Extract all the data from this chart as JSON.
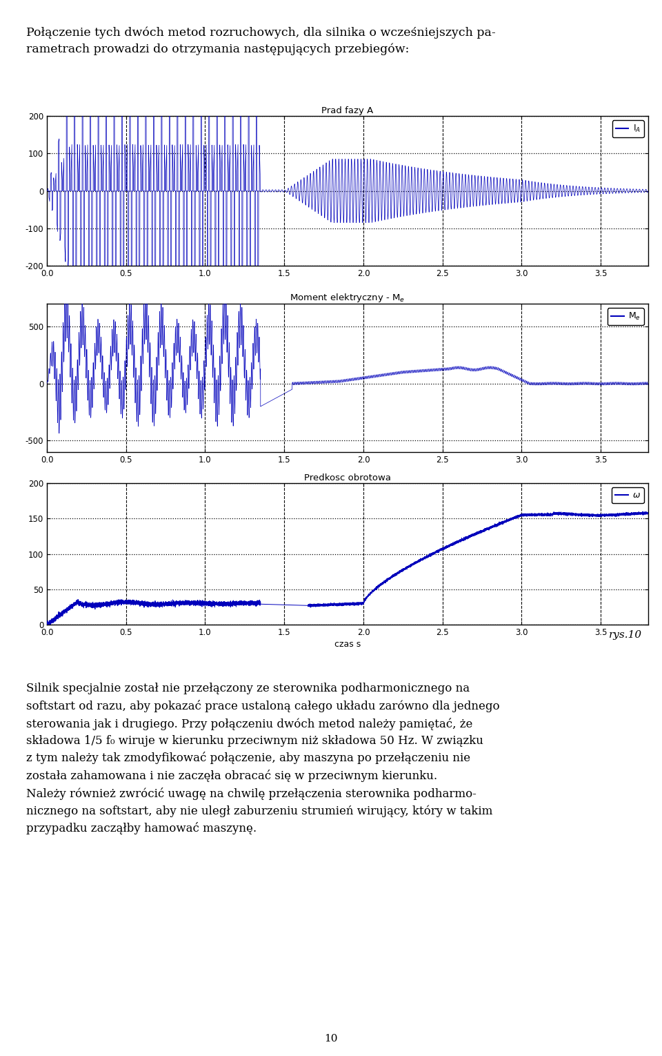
{
  "title_text": "Połączenie tych dwóch metod rozruchowych, dla silnika o wcześniejszych pa-\nrametrach prowadzi do otrzymania następujących przebiegów:",
  "plot1_title": "Prad fazy A",
  "plot2_title": "Moment elektryczny - Mₑ",
  "plot3_title": "Predkosc obrotowa",
  "xlabel": "czas s",
  "legend1": "Iₐ",
  "legend2": "Mₑ",
  "legend3": "ω",
  "caption": "rys.10",
  "bottom_text_line1": "Silnik specjalnie został nie przełączony ze sterownika podharmonicznego na softstart od razu, aby pokazać prace ustaloną całego układu zarówno dla jednego",
  "bottom_text_line2": "sterowania jak i drugiego. Przy połączeniu dwóch metod należy pamiętać, że składowa 1/5 f₀ wiruje w kierunku przeciwnym niż składowa 50 Hz. W związku",
  "bottom_text_line3": "z tym należy tak zmodyfikować połączenie, aby maszyna po przełączeniu nie została zahamowana i nie zaczęła obracać się w przeciwnym kierunku.",
  "bottom_text_line4": "Należy również zwrócić uwagę na chwilę przełączenia sterownika podharmo-",
  "bottom_text_line5": "nicznego na softstart, aby nie uległ zaburzeniu strumień wirujący, który w takim przypadku zacząłby hamować maszynę.",
  "page_number": "10",
  "xlim": [
    0,
    3.8
  ],
  "plot1_ylim": [
    -200,
    200
  ],
  "plot2_ylim": [
    -600,
    700
  ],
  "plot3_ylim": [
    0,
    200
  ],
  "plot1_yticks": [
    -200,
    -100,
    0,
    100,
    200
  ],
  "plot2_yticks": [
    -500,
    0,
    500
  ],
  "plot3_yticks": [
    0,
    50,
    100,
    150,
    200
  ],
  "xticks": [
    0,
    0.5,
    1,
    1.5,
    2,
    2.5,
    3,
    3.5
  ],
  "line_color": "#0000bb",
  "bg_color": "#ffffff"
}
